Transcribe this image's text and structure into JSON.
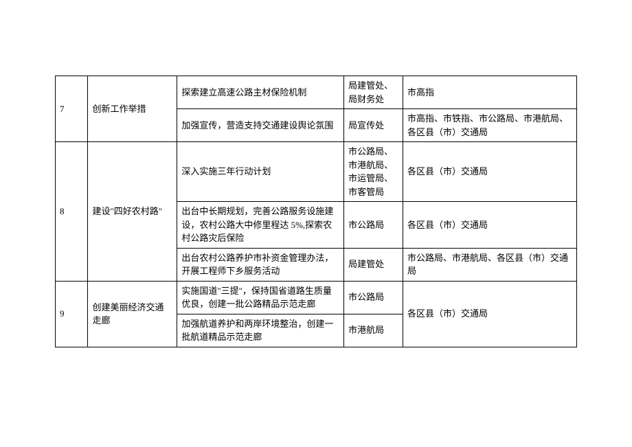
{
  "table": {
    "rows": [
      {
        "num": "7",
        "cat": "创新工作举措",
        "task": "探索建立高速公路主材保险机制",
        "dept": "局建管处、局财务处",
        "resp": "市高指"
      },
      {
        "task": "加强宣传，营造支持交通建设舆论氛围",
        "dept": "局宣传处",
        "resp": "市高指、市铁指、市公路局、市港航局、各区县（市）交通局"
      },
      {
        "num": "8",
        "cat": "建设\"四好农村路\"",
        "task": "深入实施三年行动计划",
        "dept": "市公路局、市港航局、市运管局、市客管局",
        "resp": "各区县（市）交通局"
      },
      {
        "task": "出台中长期规划，完善公路服务设施建设，农村公路大中修里程达 5%,探索农村公路灾后保险",
        "dept": "市公路局",
        "resp": "各区县（市）交通局"
      },
      {
        "task": "出台农村公路养护市补资金管理办法，开展工程师下乡服务活动",
        "dept": "局建管处",
        "resp": "市公路局、市港航局、各区县（市）交通局"
      },
      {
        "num": "9",
        "cat": "创建美丽经济交通走廊",
        "task": "实施国道\"三提\"，保持国省道路生质量优良，创建一批公路精品示范走廊",
        "dept": "市公路局",
        "resp": "各区县（市）交通局"
      },
      {
        "task": "加强航道养护和两岸环境整治，创建一批航道精品示范走廊",
        "dept": "市港航局"
      }
    ]
  }
}
